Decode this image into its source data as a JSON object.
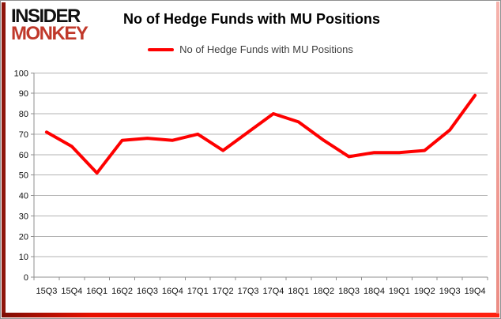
{
  "logo": {
    "line1": "INSIDER",
    "line2": "MONKEY"
  },
  "header": {
    "title": "No of Hedge Funds with MU Positions"
  },
  "legend": {
    "label": "No of Hedge Funds with MU Positions",
    "swatch_color": "#fe0000"
  },
  "colors": {
    "series_red": "#fe0000",
    "logo_red": "#c0392b",
    "gridline": "#b3b3b3",
    "axis_line": "#8f8f8f",
    "tick_text": "#111111",
    "frame_left_maroon": "#8e150b",
    "frame_bottom_red": "#ff1100",
    "frame_right_pink": "#f09a93"
  },
  "chart_data": {
    "type": "line",
    "title": "No of Hedge Funds with MU Positions",
    "categories": [
      "15Q3",
      "15Q4",
      "16Q1",
      "16Q2",
      "16Q3",
      "16Q4",
      "17Q1",
      "17Q2",
      "17Q3",
      "17Q4",
      "18Q1",
      "18Q2",
      "18Q3",
      "18Q4",
      "19Q1",
      "19Q2",
      "19Q3",
      "19Q4"
    ],
    "series": [
      {
        "name": "No of Hedge Funds with MU Positions",
        "color": "#fe0000",
        "values": [
          71,
          64,
          51,
          67,
          68,
          67,
          70,
          62,
          71,
          80,
          76,
          67,
          59,
          61,
          61,
          62,
          72,
          89
        ]
      }
    ],
    "xlabel": "",
    "ylabel": "",
    "ylim": [
      0,
      100
    ],
    "ytick_step": 10,
    "grid": "horizontal-only",
    "legend_position": "top-center"
  }
}
